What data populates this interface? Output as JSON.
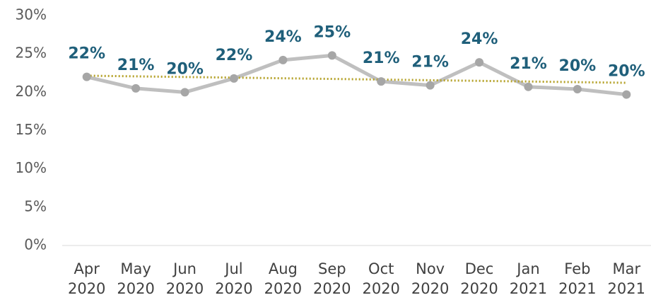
{
  "chart_data": {
    "type": "line",
    "categories": [
      "Apr 2020",
      "May 2020",
      "Jun 2020",
      "Jul 2020",
      "Aug 2020",
      "Sep 2020",
      "Oct 2020",
      "Nov 2020",
      "Dec 2020",
      "Jan 2021",
      "Feb 2021",
      "Mar 2021"
    ],
    "series": [
      {
        "color": "#bfbfbf",
        "values": [
          22.0,
          20.5,
          20.0,
          21.8,
          24.2,
          24.8,
          21.4,
          20.9,
          23.9,
          20.7,
          20.4,
          19.7
        ],
        "value_labels": [
          "22%",
          "21%",
          "20%",
          "22%",
          "24%",
          "25%",
          "21%",
          "21%",
          "24%",
          "21%",
          "20%",
          "20%"
        ]
      }
    ],
    "ylim": [
      0,
      30
    ],
    "yticks": [
      {
        "value": 0,
        "label": "0%"
      },
      {
        "value": 5,
        "label": "5%"
      },
      {
        "value": 10,
        "label": "10%"
      },
      {
        "value": 15,
        "label": "15%"
      },
      {
        "value": 20,
        "label": "20%"
      },
      {
        "value": 25,
        "label": "25%"
      },
      {
        "value": 30,
        "label": "30%"
      }
    ],
    "trendline": true,
    "trendline_color": "#b5a22a",
    "marker_color": "#a6a6a6",
    "label_color": "#1f5f7a",
    "grid": false
  }
}
